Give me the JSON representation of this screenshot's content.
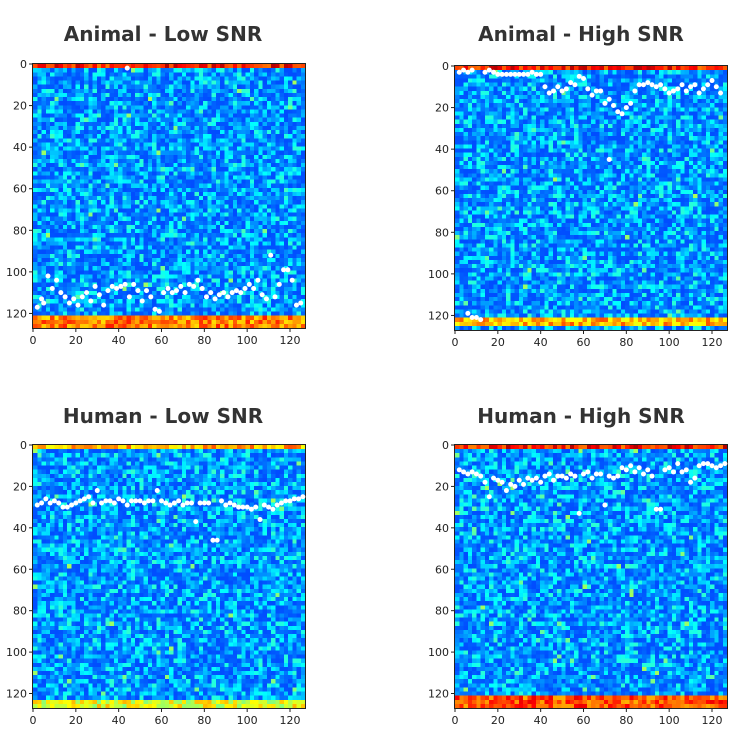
{
  "chart_data": [
    {
      "type": "heatmap",
      "title": "Animal - Low SNR",
      "xlim": [
        0,
        127
      ],
      "ylim": [
        0,
        127
      ],
      "y_inverted": true,
      "xticks": [
        0,
        20,
        40,
        60,
        80,
        100,
        120
      ],
      "yticks": [
        0,
        20,
        40,
        60,
        80,
        100,
        120
      ],
      "colormap": "jet",
      "bright_rows": [
        [
          0,
          2,
          0.95
        ],
        [
          122,
          127,
          0.85
        ]
      ],
      "points": [
        [
          2,
          117
        ],
        [
          4,
          113
        ],
        [
          5,
          115
        ],
        [
          7,
          102
        ],
        [
          9,
          108
        ],
        [
          11,
          104
        ],
        [
          13,
          110
        ],
        [
          15,
          112
        ],
        [
          17,
          115
        ],
        [
          19,
          113
        ],
        [
          21,
          116
        ],
        [
          23,
          112
        ],
        [
          25,
          110
        ],
        [
          27,
          114
        ],
        [
          29,
          107
        ],
        [
          31,
          111
        ],
        [
          33,
          116
        ],
        [
          35,
          109
        ],
        [
          37,
          107
        ],
        [
          39,
          108
        ],
        [
          41,
          107
        ],
        [
          43,
          106
        ],
        [
          45,
          112
        ],
        [
          47,
          106
        ],
        [
          49,
          109
        ],
        [
          51,
          114
        ],
        [
          53,
          109
        ],
        [
          55,
          112
        ],
        [
          57,
          118
        ],
        [
          59,
          119
        ],
        [
          61,
          110
        ],
        [
          63,
          108
        ],
        [
          65,
          110
        ],
        [
          67,
          109
        ],
        [
          69,
          107
        ],
        [
          71,
          110
        ],
        [
          73,
          106
        ],
        [
          75,
          107
        ],
        [
          77,
          104
        ],
        [
          79,
          108
        ],
        [
          81,
          112
        ],
        [
          83,
          110
        ],
        [
          85,
          113
        ],
        [
          87,
          111
        ],
        [
          89,
          110
        ],
        [
          91,
          112
        ],
        [
          93,
          110
        ],
        [
          95,
          109
        ],
        [
          97,
          110
        ],
        [
          99,
          108
        ],
        [
          101,
          106
        ],
        [
          103,
          108
        ],
        [
          105,
          104
        ],
        [
          107,
          111
        ],
        [
          109,
          113
        ],
        [
          111,
          92
        ],
        [
          113,
          112
        ],
        [
          115,
          106
        ],
        [
          117,
          99
        ],
        [
          119,
          99
        ],
        [
          121,
          104
        ],
        [
          123,
          116
        ],
        [
          125,
          115
        ],
        [
          44,
          2
        ]
      ]
    },
    {
      "type": "heatmap",
      "title": "Animal - High SNR",
      "xlim": [
        0,
        127
      ],
      "ylim": [
        0,
        127
      ],
      "y_inverted": true,
      "xticks": [
        0,
        20,
        40,
        60,
        80,
        100,
        120
      ],
      "yticks": [
        0,
        20,
        40,
        60,
        80,
        100,
        120
      ],
      "colormap": "jet",
      "bright_rows": [
        [
          0,
          2,
          0.95
        ],
        [
          122,
          126,
          0.8
        ]
      ],
      "points": [
        [
          2,
          3
        ],
        [
          4,
          2
        ],
        [
          6,
          3
        ],
        [
          8,
          2
        ],
        [
          14,
          3
        ],
        [
          16,
          2
        ],
        [
          18,
          3
        ],
        [
          20,
          4
        ],
        [
          22,
          4
        ],
        [
          24,
          4
        ],
        [
          26,
          4
        ],
        [
          28,
          4
        ],
        [
          30,
          4
        ],
        [
          32,
          4
        ],
        [
          34,
          4
        ],
        [
          36,
          3
        ],
        [
          38,
          4
        ],
        [
          40,
          4
        ],
        [
          42,
          10
        ],
        [
          44,
          13
        ],
        [
          46,
          12
        ],
        [
          48,
          10
        ],
        [
          50,
          12
        ],
        [
          52,
          11
        ],
        [
          54,
          8
        ],
        [
          56,
          9
        ],
        [
          58,
          5
        ],
        [
          60,
          6
        ],
        [
          62,
          11
        ],
        [
          64,
          14
        ],
        [
          66,
          12
        ],
        [
          68,
          12
        ],
        [
          70,
          18
        ],
        [
          72,
          16
        ],
        [
          74,
          19
        ],
        [
          76,
          22
        ],
        [
          78,
          23
        ],
        [
          80,
          20
        ],
        [
          82,
          18
        ],
        [
          84,
          12
        ],
        [
          86,
          9
        ],
        [
          88,
          9
        ],
        [
          90,
          8
        ],
        [
          92,
          9
        ],
        [
          94,
          10
        ],
        [
          96,
          9
        ],
        [
          98,
          11
        ],
        [
          100,
          13
        ],
        [
          102,
          12
        ],
        [
          104,
          11
        ],
        [
          106,
          9
        ],
        [
          108,
          12
        ],
        [
          110,
          10
        ],
        [
          112,
          9
        ],
        [
          114,
          13
        ],
        [
          116,
          11
        ],
        [
          118,
          9
        ],
        [
          120,
          7
        ],
        [
          122,
          10
        ],
        [
          124,
          13
        ],
        [
          72,
          45
        ],
        [
          6,
          119
        ],
        [
          8,
          121
        ],
        [
          10,
          121
        ],
        [
          12,
          122
        ]
      ]
    },
    {
      "type": "heatmap",
      "title": "Human - Low SNR",
      "xlim": [
        0,
        127
      ],
      "ylim": [
        0,
        127
      ],
      "y_inverted": true,
      "xticks": [
        0,
        20,
        40,
        60,
        80,
        100,
        120
      ],
      "yticks": [
        0,
        20,
        40,
        60,
        80,
        100,
        120
      ],
      "colormap": "jet",
      "bright_rows": [
        [
          0,
          1,
          0.8
        ],
        [
          124,
          127,
          0.7
        ]
      ],
      "points": [
        [
          2,
          29
        ],
        [
          4,
          28
        ],
        [
          6,
          26
        ],
        [
          8,
          28
        ],
        [
          10,
          27
        ],
        [
          12,
          28
        ],
        [
          14,
          30
        ],
        [
          16,
          30
        ],
        [
          18,
          29
        ],
        [
          20,
          28
        ],
        [
          22,
          27
        ],
        [
          24,
          26
        ],
        [
          26,
          25
        ],
        [
          28,
          28
        ],
        [
          30,
          22
        ],
        [
          32,
          28
        ],
        [
          34,
          27
        ],
        [
          36,
          27
        ],
        [
          38,
          28
        ],
        [
          40,
          26
        ],
        [
          42,
          27
        ],
        [
          44,
          29
        ],
        [
          46,
          27
        ],
        [
          48,
          27
        ],
        [
          50,
          27
        ],
        [
          52,
          28
        ],
        [
          54,
          27
        ],
        [
          56,
          27
        ],
        [
          58,
          22
        ],
        [
          60,
          27
        ],
        [
          62,
          28
        ],
        [
          64,
          29
        ],
        [
          66,
          28
        ],
        [
          68,
          27
        ],
        [
          70,
          29
        ],
        [
          72,
          28
        ],
        [
          74,
          28
        ],
        [
          76,
          37
        ],
        [
          78,
          28
        ],
        [
          80,
          28
        ],
        [
          82,
          28
        ],
        [
          84,
          46
        ],
        [
          86,
          46
        ],
        [
          88,
          27
        ],
        [
          90,
          29
        ],
        [
          92,
          28
        ],
        [
          94,
          29
        ],
        [
          96,
          30
        ],
        [
          98,
          30
        ],
        [
          100,
          30
        ],
        [
          102,
          31
        ],
        [
          104,
          30
        ],
        [
          106,
          36
        ],
        [
          108,
          29
        ],
        [
          110,
          30
        ],
        [
          112,
          31
        ],
        [
          114,
          29
        ],
        [
          116,
          28
        ],
        [
          118,
          27
        ],
        [
          120,
          27
        ],
        [
          122,
          26
        ],
        [
          124,
          26
        ],
        [
          126,
          25
        ]
      ]
    },
    {
      "type": "heatmap",
      "title": "Human - High SNR",
      "xlim": [
        0,
        127
      ],
      "ylim": [
        0,
        127
      ],
      "y_inverted": true,
      "xticks": [
        0,
        20,
        40,
        60,
        80,
        100,
        120
      ],
      "yticks": [
        0,
        20,
        40,
        60,
        80,
        100,
        120
      ],
      "colormap": "jet",
      "bright_rows": [
        [
          0,
          2,
          0.95
        ],
        [
          121,
          127,
          0.9
        ]
      ],
      "points": [
        [
          2,
          12
        ],
        [
          4,
          13
        ],
        [
          6,
          14
        ],
        [
          8,
          13
        ],
        [
          10,
          14
        ],
        [
          12,
          15
        ],
        [
          14,
          18
        ],
        [
          16,
          25
        ],
        [
          18,
          16
        ],
        [
          20,
          17
        ],
        [
          22,
          18
        ],
        [
          24,
          22
        ],
        [
          26,
          19
        ],
        [
          28,
          20
        ],
        [
          30,
          17
        ],
        [
          32,
          19
        ],
        [
          34,
          16
        ],
        [
          36,
          17
        ],
        [
          38,
          16
        ],
        [
          40,
          18
        ],
        [
          42,
          15
        ],
        [
          44,
          14
        ],
        [
          46,
          17
        ],
        [
          48,
          15
        ],
        [
          50,
          15
        ],
        [
          52,
          16
        ],
        [
          54,
          14
        ],
        [
          56,
          15
        ],
        [
          58,
          33
        ],
        [
          60,
          14
        ],
        [
          62,
          13
        ],
        [
          64,
          16
        ],
        [
          66,
          14
        ],
        [
          68,
          14
        ],
        [
          70,
          29
        ],
        [
          72,
          15
        ],
        [
          74,
          16
        ],
        [
          76,
          15
        ],
        [
          78,
          11
        ],
        [
          80,
          12
        ],
        [
          82,
          10
        ],
        [
          84,
          13
        ],
        [
          86,
          11
        ],
        [
          88,
          14
        ],
        [
          90,
          12
        ],
        [
          92,
          15
        ],
        [
          94,
          31
        ],
        [
          96,
          31
        ],
        [
          98,
          12
        ],
        [
          100,
          11
        ],
        [
          102,
          13
        ],
        [
          104,
          9
        ],
        [
          106,
          13
        ],
        [
          108,
          12
        ],
        [
          110,
          18
        ],
        [
          112,
          16
        ],
        [
          114,
          10
        ],
        [
          116,
          9
        ],
        [
          118,
          9
        ],
        [
          120,
          10
        ],
        [
          122,
          11
        ],
        [
          124,
          10
        ],
        [
          126,
          9
        ]
      ]
    }
  ]
}
